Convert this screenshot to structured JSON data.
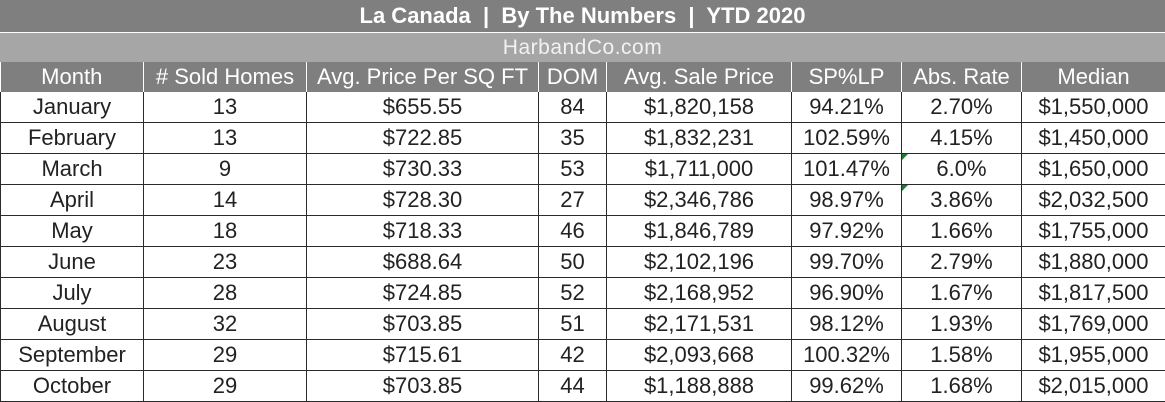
{
  "title": "La Canada  |  By The Numbers  |  YTD 2020",
  "subtitle": "HarbandCo.com",
  "chart_data": {
    "type": "table",
    "columns": [
      "Month",
      "# Sold Homes",
      "Avg. Price Per SQ FT",
      "DOM",
      "Avg. Sale Price",
      "SP%LP",
      "Abs. Rate",
      "Median"
    ],
    "rows": [
      [
        "January",
        "13",
        "$655.55",
        "84",
        "$1,820,158",
        "94.21%",
        "2.70%",
        "$1,550,000"
      ],
      [
        "February",
        "13",
        "$722.85",
        "35",
        "$1,832,231",
        "102.59%",
        "4.15%",
        "$1,450,000"
      ],
      [
        "March",
        "9",
        "$730.33",
        "53",
        "$1,711,000",
        "101.47%",
        "6.0%",
        "$1,650,000"
      ],
      [
        "April",
        "14",
        "$728.30",
        "27",
        "$2,346,786",
        "98.97%",
        "3.86%",
        "$2,032,500"
      ],
      [
        "May",
        "18",
        "$718.33",
        "46",
        "$1,846,789",
        "97.92%",
        "1.66%",
        "$1,755,000"
      ],
      [
        "June",
        "23",
        "$688.64",
        "50",
        "$2,102,196",
        "99.70%",
        "2.79%",
        "$1,880,000"
      ],
      [
        "July",
        "28",
        "$724.85",
        "52",
        "$2,168,952",
        "96.90%",
        "1.67%",
        "$1,817,500"
      ],
      [
        "August",
        "32",
        "$703.85",
        "51",
        "$2,171,531",
        "98.12%",
        "1.93%",
        "$1,769,000"
      ],
      [
        "September",
        "29",
        "$715.61",
        "42",
        "$2,093,668",
        "100.32%",
        "1.58%",
        "$1,955,000"
      ],
      [
        "October",
        "29",
        "$703.85",
        "44",
        "$1,188,888",
        "99.62%",
        "1.68%",
        "$2,015,000"
      ]
    ],
    "flagged_cells": [
      [
        2,
        6
      ],
      [
        3,
        6
      ]
    ],
    "colors": {
      "header_bg": "#7f7f7f",
      "subheader_bg": "#a6a6a6",
      "flag": "#1e7b34"
    }
  }
}
